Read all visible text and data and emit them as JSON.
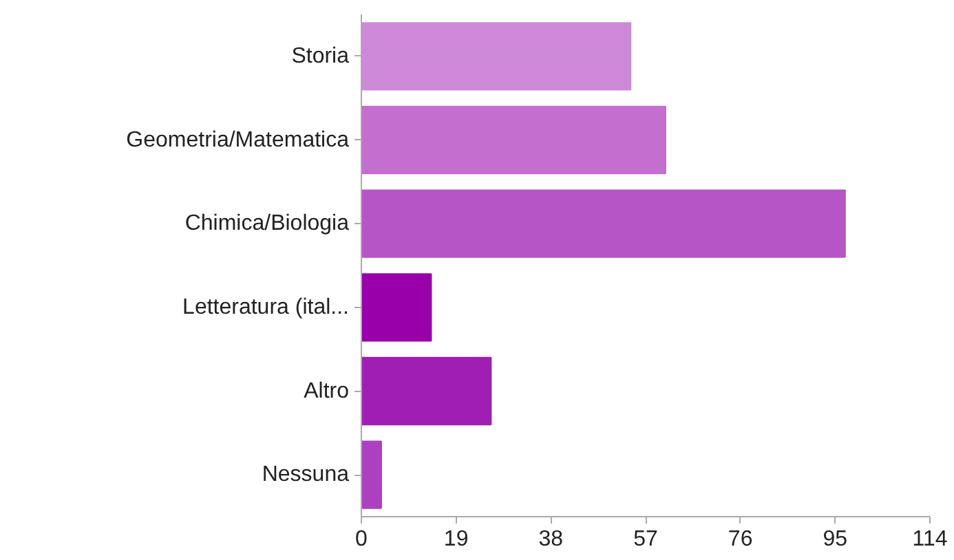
{
  "chart_data": {
    "type": "bar",
    "orientation": "horizontal",
    "categories": [
      "Storia",
      "Geometria/Matematica",
      "Chimica/Biologia",
      "Letteratura (ital...",
      "Altro",
      "Nessuna"
    ],
    "values": [
      54,
      61,
      97,
      14,
      26,
      4
    ],
    "colors": [
      "#ce8ad9",
      "#c46fcf",
      "#b655c6",
      "#9900aa",
      "#a01eb4",
      "#ad40c0"
    ],
    "xlim": [
      0,
      114
    ],
    "xticks": [
      0,
      19,
      38,
      57,
      76,
      95,
      114
    ],
    "grid": false
  }
}
